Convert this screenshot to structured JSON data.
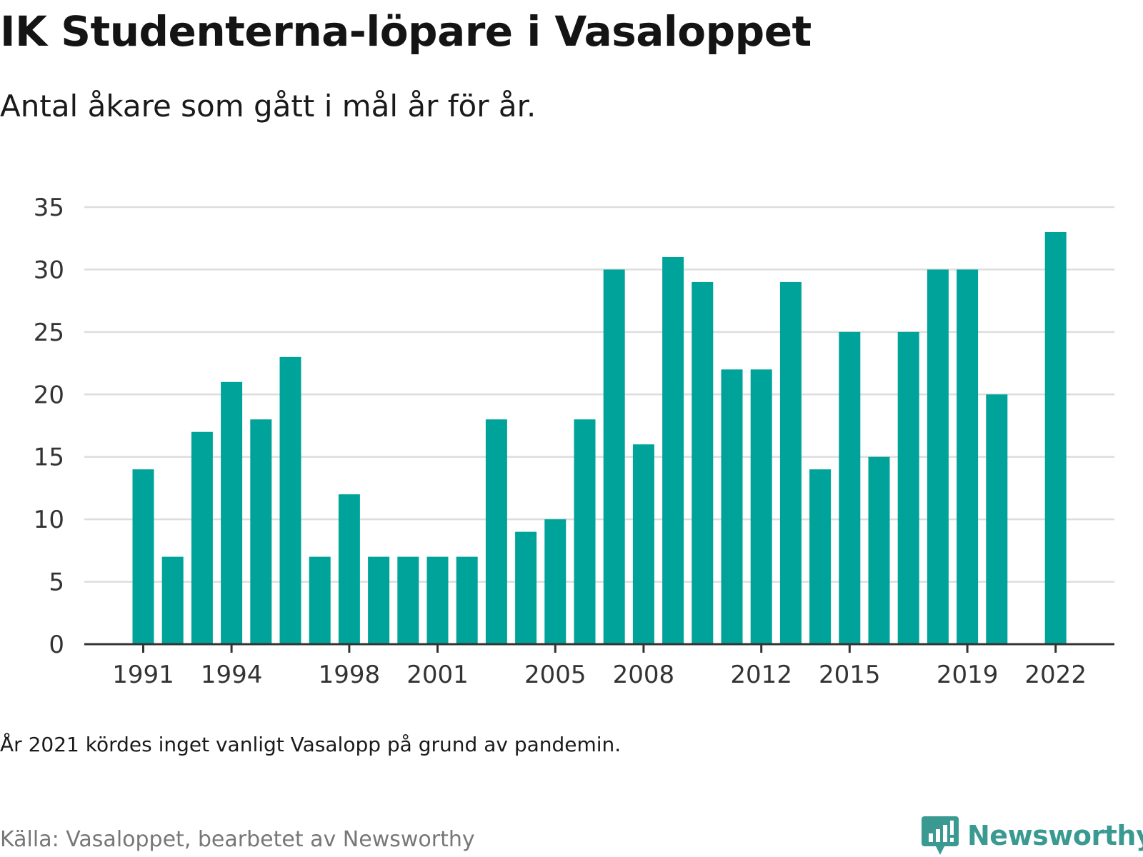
{
  "header": {
    "title": "IK Studenterna-löpare i Vasaloppet",
    "subtitle": "Antal åkare som gått i mål år för år."
  },
  "footer": {
    "note": "År 2021 kördes inget vanligt Vasalopp på grund av pandemin.",
    "source": "Källa: Vasaloppet, bearbetet av Newsworthy",
    "brand": "Newsworthy"
  },
  "colors": {
    "bar": "#00a39a",
    "grid": "#dddddd",
    "axis": "#333333",
    "brand": "#3a9a92"
  },
  "brand_icon": "newsworthy-logo-icon",
  "chart_data": {
    "type": "bar",
    "categories": [
      1991,
      1992,
      1993,
      1994,
      1995,
      1996,
      1997,
      1998,
      1999,
      2000,
      2001,
      2002,
      2003,
      2004,
      2005,
      2006,
      2007,
      2008,
      2009,
      2010,
      2011,
      2012,
      2013,
      2014,
      2015,
      2016,
      2017,
      2018,
      2019,
      2020,
      2021,
      2022
    ],
    "values": [
      14,
      7,
      17,
      21,
      18,
      23,
      7,
      12,
      7,
      7,
      7,
      7,
      18,
      9,
      10,
      18,
      30,
      16,
      31,
      29,
      22,
      22,
      29,
      14,
      25,
      15,
      25,
      30,
      30,
      20,
      null,
      33
    ],
    "x_tick_labels": [
      "1991",
      "1994",
      "1998",
      "2001",
      "2005",
      "2008",
      "2012",
      "2015",
      "2019",
      "2022"
    ],
    "y_ticks": [
      0,
      5,
      10,
      15,
      20,
      25,
      30,
      35
    ],
    "ylim": [
      0,
      35
    ],
    "grid": true,
    "legend": "none"
  }
}
